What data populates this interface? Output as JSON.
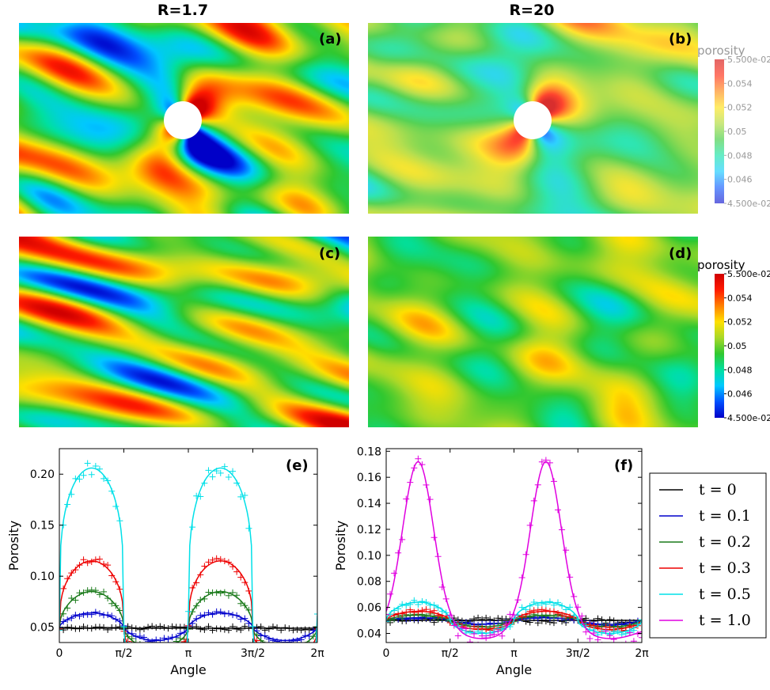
{
  "column_titles": [
    "R=1.7",
    "R=20"
  ],
  "panel_labels": {
    "a": "(a)",
    "b": "(b)",
    "c": "(c)",
    "d": "(d)",
    "e": "(e)",
    "f": "(f)"
  },
  "colorbar_top": {
    "title": "porosity",
    "ticks": [
      "5.500e-02",
      "0.054",
      "0.052",
      "0.05",
      "0.048",
      "0.046",
      "4.500e-02"
    ],
    "faded": true
  },
  "colorbar_bottom": {
    "title": "porosity",
    "ticks": [
      "5.500e-02",
      "0.054",
      "0.052",
      "0.05",
      "0.048",
      "0.046",
      "4.500e-02"
    ],
    "faded": false
  },
  "colormap": [
    "#0000c8",
    "#0050ff",
    "#00c8ff",
    "#00e0a0",
    "#30c830",
    "#a8d828",
    "#ffe000",
    "#ff8000",
    "#ff1a00",
    "#d00000"
  ],
  "maps": [
    {
      "id": "a",
      "seed": 11,
      "hole": true,
      "angle": -0.68,
      "strength": 1.9,
      "noise": 1.0,
      "faded": false
    },
    {
      "id": "b",
      "seed": 23,
      "hole": true,
      "angle": -0.68,
      "strength": 1.5,
      "noise": 0.55,
      "faded": true
    },
    {
      "id": "c",
      "seed": 37,
      "hole": false,
      "angle": -0.68,
      "strength": 0,
      "noise": 1.0,
      "faded": false
    },
    {
      "id": "d",
      "seed": 51,
      "hole": false,
      "angle": -0.68,
      "strength": 0,
      "noise": 0.55,
      "faded": false
    }
  ],
  "legend": {
    "entries": [
      {
        "label": "t = 0",
        "color": "#000000"
      },
      {
        "label": "t = 0.1",
        "color": "#0000cc"
      },
      {
        "label": "t = 0.2",
        "color": "#1a7a1a"
      },
      {
        "label": "t = 0.3",
        "color": "#ee0000"
      },
      {
        "label": "t = 0.5",
        "color": "#00e0e8"
      },
      {
        "label": "t = 1.0",
        "color": "#e000e0"
      }
    ]
  },
  "chart_data": [
    {
      "type": "line",
      "panel": "(e)",
      "xlabel": "Angle",
      "ylabel": "Porosity",
      "xlim": [
        0,
        6.2832
      ],
      "ylim": [
        0.035,
        0.225
      ],
      "xticks": [
        {
          "value": 0,
          "label": "0"
        },
        {
          "value": 1.5708,
          "label": "π/2"
        },
        {
          "value": 3.1416,
          "label": "π"
        },
        {
          "value": 4.7124,
          "label": "3π/2"
        },
        {
          "value": 6.2832,
          "label": "2π"
        }
      ],
      "yticks": [
        0.05,
        0.1,
        0.15,
        0.2
      ],
      "series": [
        {
          "name": "t = 0",
          "color": "#000000",
          "peak": 0.049,
          "valley": 0.049,
          "shape": 2,
          "scatter": 0.002
        },
        {
          "name": "t = 0.1",
          "color": "#0000cc",
          "peak": 0.064,
          "valley": 0.037,
          "shape": 1,
          "scatter": 0.002
        },
        {
          "name": "t = 0.2",
          "color": "#1a7a1a",
          "peak": 0.085,
          "valley": 0.029,
          "shape": 1.6,
          "scatter": 0.003
        },
        {
          "name": "t = 0.3",
          "color": "#ee0000",
          "peak": 0.115,
          "valley": 0.022,
          "shape": 3,
          "scatter": 0.004
        },
        {
          "name": "t = 0.5",
          "color": "#00e0e8",
          "peak": 0.206,
          "valley": 0.015,
          "shape": 5,
          "scatter": 0.007
        }
      ]
    },
    {
      "type": "line",
      "panel": "(f)",
      "xlabel": "Angle",
      "ylabel": "Porosity",
      "xlim": [
        0,
        6.2832
      ],
      "ylim": [
        0.033,
        0.182
      ],
      "xticks": [
        {
          "value": 0,
          "label": "0"
        },
        {
          "value": 1.5708,
          "label": "π/2"
        },
        {
          "value": 3.1416,
          "label": "π"
        },
        {
          "value": 4.7124,
          "label": "3π/2"
        },
        {
          "value": 6.2832,
          "label": "2π"
        }
      ],
      "yticks": [
        0.04,
        0.06,
        0.08,
        0.1,
        0.12,
        0.14,
        0.16,
        0.18
      ],
      "series": [
        {
          "name": "t = 0",
          "color": "#000000",
          "peak": 0.05,
          "valley": 0.05,
          "shape": 2,
          "scatter": 0.002
        },
        {
          "name": "t = 0.1",
          "color": "#0000cc",
          "peak": 0.052,
          "valley": 0.047,
          "shape": 1,
          "scatter": 0.001
        },
        {
          "name": "t = 0.2",
          "color": "#1a7a1a",
          "peak": 0.054,
          "valley": 0.045,
          "shape": 1,
          "scatter": 0.0015
        },
        {
          "name": "t = 0.3",
          "color": "#ee0000",
          "peak": 0.057,
          "valley": 0.043,
          "shape": 1.2,
          "scatter": 0.002
        },
        {
          "name": "t = 0.5",
          "color": "#00e0e8",
          "peak": 0.064,
          "valley": 0.04,
          "shape": 1.4,
          "scatter": 0.002
        },
        {
          "name": "t = 1.0",
          "color": "#e000e0",
          "peak": 0.172,
          "valley": 0.036,
          "shape": 0,
          "scatter": 0.006
        }
      ]
    }
  ]
}
